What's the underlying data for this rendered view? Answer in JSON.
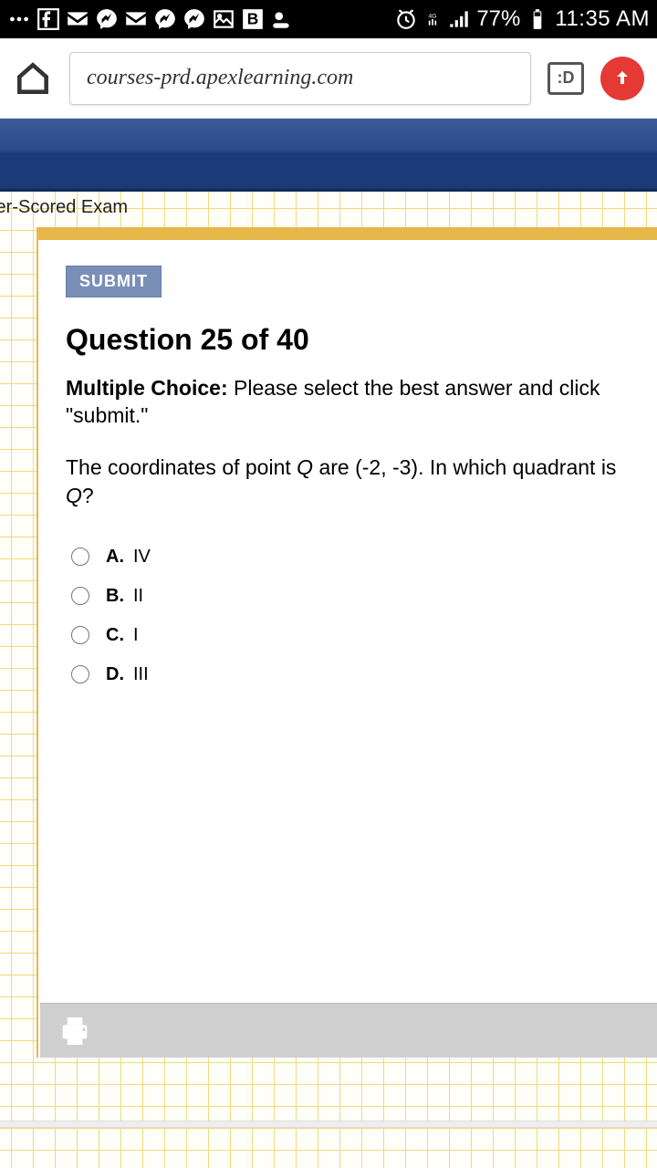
{
  "status_bar": {
    "battery_pct": "77%",
    "time": "11:35 AM"
  },
  "browser": {
    "url": "courses-prd.apexlearning.com",
    "tab_label": ":D"
  },
  "exam": {
    "breadcrumb": "ter-Scored Exam",
    "submit_label": "SUBMIT",
    "question_title": "Question 25 of 40",
    "instruction_bold": "Multiple Choice:",
    "instruction_rest": " Please select the best answer and click \"submit.\"",
    "question_html": "The coordinates of point <i>Q</i> are (-2, -3). In which quadrant is <i>Q</i>?",
    "choices": [
      {
        "letter": "A.",
        "text": "IV"
      },
      {
        "letter": "B.",
        "text": "II"
      },
      {
        "letter": "C.",
        "text": "I"
      },
      {
        "letter": "D.",
        "text": "III"
      }
    ]
  },
  "colors": {
    "banner_top": "#3a5a9a",
    "banner_bottom": "#1a3a78",
    "accent_gold": "#e6b84a",
    "submit_bg": "#7a8fb8",
    "footer_bg": "#cfcfcf",
    "up_circle": "#e53935"
  }
}
